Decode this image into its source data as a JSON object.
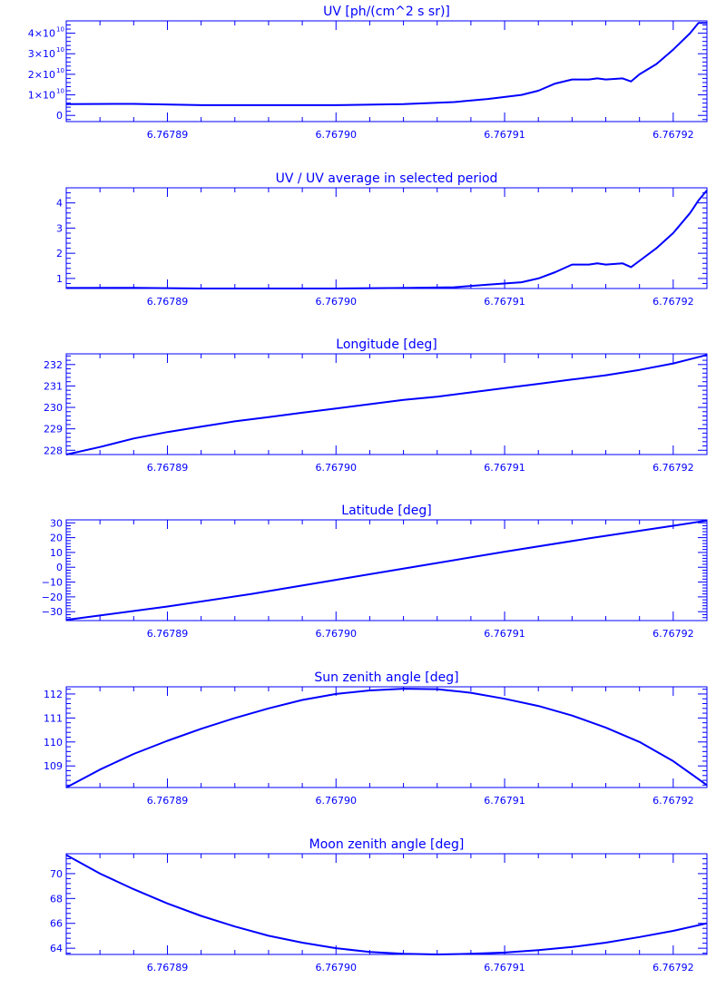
{
  "chart_data": [
    {
      "type": "line",
      "title": "UV [ph/(cm^2 s sr)]",
      "xlim": [
        6.767884,
        6.767922
      ],
      "ylim": [
        -3000000000.0,
        46000000000.0
      ],
      "yticks": [
        0,
        10000000000.0,
        20000000000.0,
        30000000000.0,
        40000000000.0
      ],
      "ytick_labels": [
        {
          "base": "0",
          "exp": ""
        },
        {
          "base": "1×10",
          "exp": "10"
        },
        {
          "base": "2×10",
          "exp": "10"
        },
        {
          "base": "3×10",
          "exp": "10"
        },
        {
          "base": "4×10",
          "exp": "10"
        }
      ],
      "xticks": [
        6.76789,
        6.7679,
        6.76791,
        6.76792
      ],
      "xtick_labels": [
        "6.76789",
        "6.76790",
        "6.76791",
        "6.76792"
      ],
      "x": [
        6.767884,
        6.767888,
        6.767892,
        6.767896,
        6.7679,
        6.767904,
        6.767907,
        6.767909,
        6.767911,
        6.767912,
        6.767913,
        6.767914,
        6.767915,
        6.7679155,
        6.767916,
        6.767917,
        6.7679175,
        6.767918,
        6.767919,
        6.76792,
        6.767921,
        6.7679215,
        6.767922
      ],
      "y": [
        5500000000.0,
        5600000000.0,
        5000000000.0,
        5000000000.0,
        5000000000.0,
        5500000000.0,
        6500000000.0,
        8000000000.0,
        10000000000.0,
        12000000000.0,
        15500000000.0,
        17500000000.0,
        17500000000.0,
        18000000000.0,
        17500000000.0,
        18000000000.0,
        16500000000.0,
        20000000000.0,
        25000000000.0,
        32000000000.0,
        40000000000.0,
        45000000000.0,
        45000000000.0
      ]
    },
    {
      "type": "line",
      "title": "UV / UV average in selected period",
      "xlim": [
        6.767884,
        6.767922
      ],
      "ylim": [
        0.6,
        4.6
      ],
      "yticks": [
        1,
        2,
        3,
        4
      ],
      "ytick_labels": [
        {
          "base": "1"
        },
        {
          "base": "2"
        },
        {
          "base": "3"
        },
        {
          "base": "4"
        }
      ],
      "xticks": [
        6.76789,
        6.7679,
        6.76791,
        6.76792
      ],
      "xtick_labels": [
        "6.76789",
        "6.76790",
        "6.76791",
        "6.76792"
      ],
      "x": [
        6.767884,
        6.767888,
        6.767892,
        6.767896,
        6.7679,
        6.767904,
        6.767907,
        6.767909,
        6.767911,
        6.767912,
        6.767913,
        6.767914,
        6.767915,
        6.7679155,
        6.767916,
        6.767917,
        6.7679175,
        6.767918,
        6.767919,
        6.76792,
        6.767921,
        6.7679215,
        6.767922
      ],
      "y": [
        0.62,
        0.63,
        0.6,
        0.6,
        0.6,
        0.62,
        0.65,
        0.75,
        0.85,
        1.0,
        1.25,
        1.55,
        1.55,
        1.6,
        1.55,
        1.6,
        1.45,
        1.7,
        2.2,
        2.8,
        3.6,
        4.1,
        4.5
      ]
    },
    {
      "type": "line",
      "title": "Longitude [deg]",
      "xlim": [
        6.767884,
        6.767922
      ],
      "ylim": [
        227.8,
        232.5
      ],
      "yticks": [
        228,
        229,
        230,
        231,
        232
      ],
      "ytick_labels": [
        {
          "base": "228"
        },
        {
          "base": "229"
        },
        {
          "base": "230"
        },
        {
          "base": "231"
        },
        {
          "base": "232"
        }
      ],
      "xticks": [
        6.76789,
        6.7679,
        6.76791,
        6.76792
      ],
      "xtick_labels": [
        "6.76789",
        "6.76790",
        "6.76791",
        "6.76792"
      ],
      "x": [
        6.767884,
        6.767886,
        6.767888,
        6.76789,
        6.767892,
        6.767894,
        6.767896,
        6.767898,
        6.7679,
        6.767902,
        6.767904,
        6.767906,
        6.767908,
        6.76791,
        6.767912,
        6.767914,
        6.767916,
        6.767918,
        6.76792,
        6.767922
      ],
      "y": [
        227.8,
        228.15,
        228.55,
        228.85,
        229.1,
        229.35,
        229.55,
        229.75,
        229.95,
        230.15,
        230.35,
        230.5,
        230.7,
        230.9,
        231.1,
        231.3,
        231.5,
        231.75,
        232.05,
        232.45
      ]
    },
    {
      "type": "line",
      "title": "Latitude [deg]",
      "xlim": [
        6.767884,
        6.767922
      ],
      "ylim": [
        -36,
        32
      ],
      "yticks": [
        -30,
        -20,
        -10,
        0,
        10,
        20,
        30
      ],
      "ytick_labels": [
        {
          "base": "−30"
        },
        {
          "base": "−20"
        },
        {
          "base": "−10"
        },
        {
          "base": "0"
        },
        {
          "base": "10"
        },
        {
          "base": "20"
        },
        {
          "base": "30"
        }
      ],
      "xticks": [
        6.76789,
        6.7679,
        6.76791,
        6.76792
      ],
      "xtick_labels": [
        "6.76789",
        "6.76790",
        "6.76791",
        "6.76792"
      ],
      "x": [
        6.767884,
        6.76789,
        6.767895,
        6.7679,
        6.767905,
        6.76791,
        6.767915,
        6.76792,
        6.767922
      ],
      "y": [
        -35.5,
        -26.5,
        -18,
        -8.5,
        1,
        10.5,
        19.5,
        28,
        31.5
      ]
    },
    {
      "type": "line",
      "title": "Sun zenith angle [deg]",
      "xlim": [
        6.767884,
        6.767922
      ],
      "ylim": [
        108.1,
        112.3
      ],
      "yticks": [
        109,
        110,
        111,
        112
      ],
      "ytick_labels": [
        {
          "base": "109"
        },
        {
          "base": "110"
        },
        {
          "base": "111"
        },
        {
          "base": "112"
        }
      ],
      "xticks": [
        6.76789,
        6.7679,
        6.76791,
        6.76792
      ],
      "xtick_labels": [
        "6.76789",
        "6.76790",
        "6.76791",
        "6.76792"
      ],
      "x": [
        6.767884,
        6.767886,
        6.767888,
        6.76789,
        6.767892,
        6.767894,
        6.767896,
        6.767898,
        6.7679,
        6.767902,
        6.767904,
        6.767906,
        6.767908,
        6.76791,
        6.767912,
        6.767914,
        6.767916,
        6.767918,
        6.76792,
        6.767922
      ],
      "y": [
        108.1,
        108.85,
        109.5,
        110.05,
        110.55,
        111.0,
        111.4,
        111.75,
        112.0,
        112.15,
        112.22,
        112.2,
        112.05,
        111.8,
        111.5,
        111.1,
        110.6,
        110.0,
        109.2,
        108.2
      ]
    },
    {
      "type": "line",
      "title": "Moon zenith angle [deg]",
      "xlim": [
        6.767884,
        6.767922
      ],
      "ylim": [
        63.5,
        71.6
      ],
      "yticks": [
        64,
        66,
        68,
        70
      ],
      "ytick_labels": [
        {
          "base": "64"
        },
        {
          "base": "66"
        },
        {
          "base": "68"
        },
        {
          "base": "70"
        }
      ],
      "xticks": [
        6.76789,
        6.7679,
        6.76791,
        6.76792
      ],
      "xtick_labels": [
        "6.76789",
        "6.76790",
        "6.76791",
        "6.76792"
      ],
      "x": [
        6.767884,
        6.767886,
        6.767888,
        6.76789,
        6.767892,
        6.767894,
        6.767896,
        6.767898,
        6.7679,
        6.767902,
        6.767904,
        6.767906,
        6.767908,
        6.76791,
        6.767912,
        6.767914,
        6.767916,
        6.767918,
        6.76792,
        6.767922
      ],
      "y": [
        71.5,
        70.0,
        68.75,
        67.6,
        66.6,
        65.75,
        65.0,
        64.45,
        64.0,
        63.7,
        63.55,
        63.5,
        63.55,
        63.65,
        63.85,
        64.1,
        64.45,
        64.9,
        65.4,
        66.0
      ]
    }
  ]
}
